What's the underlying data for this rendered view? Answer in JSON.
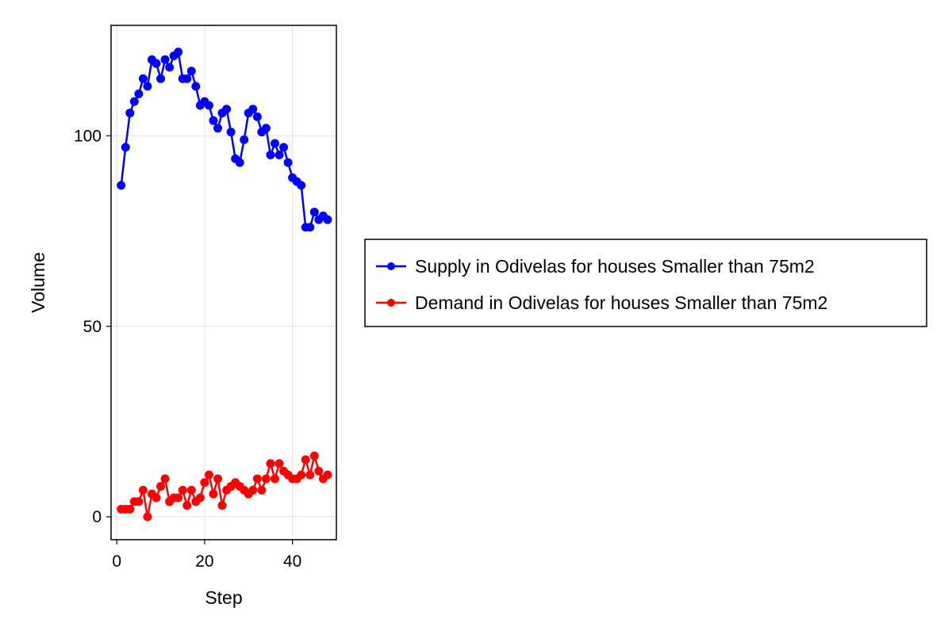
{
  "chart_data": {
    "type": "line",
    "title": "",
    "xlabel": "Step",
    "ylabel": "Volume",
    "xlim": [
      -1.3,
      50
    ],
    "ylim": [
      -6,
      129
    ],
    "xticks": [
      0,
      20,
      40
    ],
    "yticks": [
      0,
      50,
      100
    ],
    "grid": true,
    "legend_position": "right",
    "series": [
      {
        "name": "Supply in Odivelas for houses Smaller than 75m2",
        "color": "#0000ff",
        "x": [
          1,
          2,
          3,
          4,
          5,
          6,
          7,
          8,
          9,
          10,
          11,
          12,
          13,
          14,
          15,
          16,
          17,
          18,
          19,
          20,
          21,
          22,
          23,
          24,
          25,
          26,
          27,
          28,
          29,
          30,
          31,
          32,
          33,
          34,
          35,
          36,
          37,
          38,
          39,
          40,
          41,
          42,
          43,
          44,
          45,
          46,
          47,
          48
        ],
        "values": [
          87,
          97,
          106,
          109,
          111,
          115,
          113,
          120,
          119,
          115,
          120,
          118,
          121,
          122,
          115,
          115,
          117,
          113,
          108,
          109,
          108,
          104,
          102,
          106,
          107,
          101,
          94,
          93,
          99,
          106,
          107,
          105,
          101,
          102,
          95,
          98,
          95,
          97,
          93,
          89,
          88,
          87,
          76,
          76,
          80,
          78,
          79,
          78
        ]
      },
      {
        "name": "Demand in Odivelas for houses Smaller than 75m2",
        "color": "#ff0000",
        "x": [
          1,
          2,
          3,
          4,
          5,
          6,
          7,
          8,
          9,
          10,
          11,
          12,
          13,
          14,
          15,
          16,
          17,
          18,
          19,
          20,
          21,
          22,
          23,
          24,
          25,
          26,
          27,
          28,
          29,
          30,
          31,
          32,
          33,
          34,
          35,
          36,
          37,
          38,
          39,
          40,
          41,
          42,
          43,
          44,
          45,
          46,
          47,
          48
        ],
        "values": [
          2,
          2,
          2,
          4,
          4,
          7,
          0,
          6,
          5,
          8,
          10,
          4,
          5,
          5,
          7,
          3,
          7,
          4,
          5,
          9,
          11,
          6,
          10,
          3,
          7,
          8,
          9,
          8,
          7,
          6,
          7,
          10,
          7,
          10,
          14,
          10,
          14,
          12,
          11,
          10,
          10,
          11,
          15,
          11,
          16,
          12,
          10,
          11
        ]
      }
    ]
  }
}
